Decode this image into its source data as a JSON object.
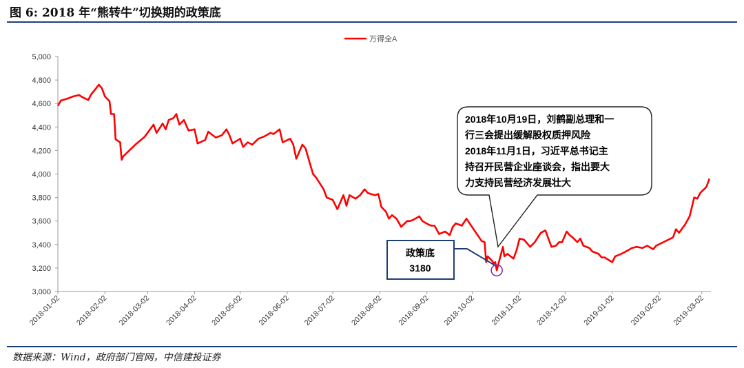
{
  "figure": {
    "title": "图 6: 2018 年“熊转牛”切换期的政策底",
    "source": "数据来源：Wind，政府部门官网，中信建投证券"
  },
  "chart_data": {
    "type": "line",
    "legend": "万得全A",
    "series": [
      {
        "name": "万得全A",
        "color": "#ff0000",
        "points": [
          [
            "2018-01-02",
            4580
          ],
          [
            "2018-01-04",
            4625
          ],
          [
            "2018-01-08",
            4640
          ],
          [
            "2018-01-12",
            4660
          ],
          [
            "2018-01-16",
            4672
          ],
          [
            "2018-01-18",
            4655
          ],
          [
            "2018-01-22",
            4630
          ],
          [
            "2018-01-24",
            4680
          ],
          [
            "2018-01-26",
            4710
          ],
          [
            "2018-01-29",
            4760
          ],
          [
            "2018-01-31",
            4730
          ],
          [
            "2018-02-02",
            4660
          ],
          [
            "2018-02-05",
            4620
          ],
          [
            "2018-02-06",
            4510
          ],
          [
            "2018-02-08",
            4510
          ],
          [
            "2018-02-09",
            4295
          ],
          [
            "2018-02-12",
            4270
          ],
          [
            "2018-02-13",
            4120
          ],
          [
            "2018-02-14",
            4150
          ],
          [
            "2018-02-22",
            4250
          ],
          [
            "2018-02-28",
            4315
          ],
          [
            "2018-03-06",
            4420
          ],
          [
            "2018-03-08",
            4350
          ],
          [
            "2018-03-12",
            4430
          ],
          [
            "2018-03-14",
            4380
          ],
          [
            "2018-03-16",
            4460
          ],
          [
            "2018-03-19",
            4475
          ],
          [
            "2018-03-21",
            4510
          ],
          [
            "2018-03-23",
            4420
          ],
          [
            "2018-03-26",
            4460
          ],
          [
            "2018-03-29",
            4370
          ],
          [
            "2018-04-02",
            4380
          ],
          [
            "2018-04-04",
            4260
          ],
          [
            "2018-04-09",
            4290
          ],
          [
            "2018-04-11",
            4360
          ],
          [
            "2018-04-16",
            4310
          ],
          [
            "2018-04-20",
            4330
          ],
          [
            "2018-04-23",
            4380
          ],
          [
            "2018-04-25",
            4330
          ],
          [
            "2018-04-27",
            4260
          ],
          [
            "2018-05-02",
            4300
          ],
          [
            "2018-05-04",
            4230
          ],
          [
            "2018-05-07",
            4270
          ],
          [
            "2018-05-10",
            4250
          ],
          [
            "2018-05-14",
            4300
          ],
          [
            "2018-05-18",
            4320
          ],
          [
            "2018-05-22",
            4350
          ],
          [
            "2018-05-24",
            4340
          ],
          [
            "2018-05-28",
            4380
          ],
          [
            "2018-05-30",
            4270
          ],
          [
            "2018-06-04",
            4300
          ],
          [
            "2018-06-06",
            4250
          ],
          [
            "2018-06-08",
            4130
          ],
          [
            "2018-06-12",
            4250
          ],
          [
            "2018-06-14",
            4220
          ],
          [
            "2018-06-19",
            4000
          ],
          [
            "2018-06-21",
            3970
          ],
          [
            "2018-06-26",
            3870
          ],
          [
            "2018-06-28",
            3800
          ],
          [
            "2018-07-02",
            3780
          ],
          [
            "2018-07-05",
            3700
          ],
          [
            "2018-07-09",
            3820
          ],
          [
            "2018-07-11",
            3730
          ],
          [
            "2018-07-13",
            3820
          ],
          [
            "2018-07-17",
            3790
          ],
          [
            "2018-07-20",
            3820
          ],
          [
            "2018-07-23",
            3870
          ],
          [
            "2018-07-25",
            3840
          ],
          [
            "2018-07-27",
            3830
          ],
          [
            "2018-07-30",
            3820
          ],
          [
            "2018-08-01",
            3830
          ],
          [
            "2018-08-03",
            3720
          ],
          [
            "2018-08-06",
            3680
          ],
          [
            "2018-08-08",
            3620
          ],
          [
            "2018-08-10",
            3650
          ],
          [
            "2018-08-13",
            3620
          ],
          [
            "2018-08-16",
            3550
          ],
          [
            "2018-08-20",
            3600
          ],
          [
            "2018-08-22",
            3600
          ],
          [
            "2018-08-24",
            3610
          ],
          [
            "2018-08-28",
            3640
          ],
          [
            "2018-08-30",
            3600
          ],
          [
            "2018-09-03",
            3570
          ],
          [
            "2018-09-05",
            3560
          ],
          [
            "2018-09-07",
            3560
          ],
          [
            "2018-09-10",
            3490
          ],
          [
            "2018-09-12",
            3500
          ],
          [
            "2018-09-14",
            3510
          ],
          [
            "2018-09-17",
            3480
          ],
          [
            "2018-09-19",
            3550
          ],
          [
            "2018-09-21",
            3580
          ],
          [
            "2018-09-25",
            3560
          ],
          [
            "2018-09-27",
            3600
          ],
          [
            "2018-09-28",
            3620
          ],
          [
            "2018-10-08",
            3430
          ],
          [
            "2018-10-10",
            3420
          ],
          [
            "2018-10-11",
            3250
          ],
          [
            "2018-10-12",
            3300
          ],
          [
            "2018-10-15",
            3260
          ],
          [
            "2018-10-16",
            3240
          ],
          [
            "2018-10-17",
            3250
          ],
          [
            "2018-10-18",
            3180
          ],
          [
            "2018-10-19",
            3230
          ],
          [
            "2018-10-22",
            3380
          ],
          [
            "2018-10-23",
            3300
          ],
          [
            "2018-10-25",
            3320
          ],
          [
            "2018-10-29",
            3280
          ],
          [
            "2018-10-31",
            3350
          ],
          [
            "2018-11-02",
            3450
          ],
          [
            "2018-11-05",
            3440
          ],
          [
            "2018-11-07",
            3410
          ],
          [
            "2018-11-09",
            3380
          ],
          [
            "2018-11-12",
            3420
          ],
          [
            "2018-11-14",
            3460
          ],
          [
            "2018-11-16",
            3500
          ],
          [
            "2018-11-19",
            3520
          ],
          [
            "2018-11-21",
            3450
          ],
          [
            "2018-11-23",
            3380
          ],
          [
            "2018-11-26",
            3390
          ],
          [
            "2018-11-28",
            3420
          ],
          [
            "2018-11-30",
            3420
          ],
          [
            "2018-12-03",
            3510
          ],
          [
            "2018-12-05",
            3480
          ],
          [
            "2018-12-07",
            3460
          ],
          [
            "2018-12-10",
            3420
          ],
          [
            "2018-12-12",
            3450
          ],
          [
            "2018-12-14",
            3390
          ],
          [
            "2018-12-18",
            3370
          ],
          [
            "2018-12-20",
            3340
          ],
          [
            "2018-12-24",
            3320
          ],
          [
            "2018-12-26",
            3290
          ],
          [
            "2018-12-28",
            3290
          ],
          [
            "2019-01-02",
            3250
          ],
          [
            "2019-01-04",
            3300
          ],
          [
            "2019-01-08",
            3320
          ],
          [
            "2019-01-11",
            3340
          ],
          [
            "2019-01-15",
            3370
          ],
          [
            "2019-01-18",
            3380
          ],
          [
            "2019-01-22",
            3370
          ],
          [
            "2019-01-25",
            3390
          ],
          [
            "2019-01-29",
            3360
          ],
          [
            "2019-01-31",
            3390
          ],
          [
            "2019-02-11",
            3460
          ],
          [
            "2019-02-13",
            3530
          ],
          [
            "2019-02-15",
            3500
          ],
          [
            "2019-02-19",
            3570
          ],
          [
            "2019-02-22",
            3640
          ],
          [
            "2019-02-25",
            3800
          ],
          [
            "2019-02-27",
            3790
          ],
          [
            "2019-03-01",
            3840
          ],
          [
            "2019-03-05",
            3890
          ],
          [
            "2019-03-07",
            3960
          ]
        ]
      }
    ],
    "ylim": [
      3000,
      5000
    ],
    "yticks": [
      "3,000",
      "3,200",
      "3,400",
      "3,600",
      "3,800",
      "4,000",
      "4,200",
      "4,400",
      "4,600",
      "4,800",
      "5,000"
    ],
    "xlim": [
      "2018-01-02",
      "2019-03-08"
    ],
    "xticks": [
      "2018-01-02",
      "2018-02-02",
      "2018-03-02",
      "2018-04-02",
      "2018-05-02",
      "2018-06-02",
      "2018-07-02",
      "2018-08-02",
      "2018-09-02",
      "2018-10-02",
      "2018-11-02",
      "2018-12-02",
      "2019-01-02",
      "2019-02-02",
      "2019-03-02"
    ],
    "grid": false,
    "legend_position": "top",
    "annotations": {
      "callout_lines": [
        "2018年10月19日，刘鹤副总理和一",
        "行三会提出缓解股权质押风险",
        "2018年11月1日，习近平总书记主",
        "持召开民营企业座谈会，指出要大",
        "力支持民营经济发展壮大"
      ],
      "box_line1": "政策底",
      "box_line2": "3180",
      "marker_date": "2018-10-18",
      "marker_value": 3180
    }
  }
}
